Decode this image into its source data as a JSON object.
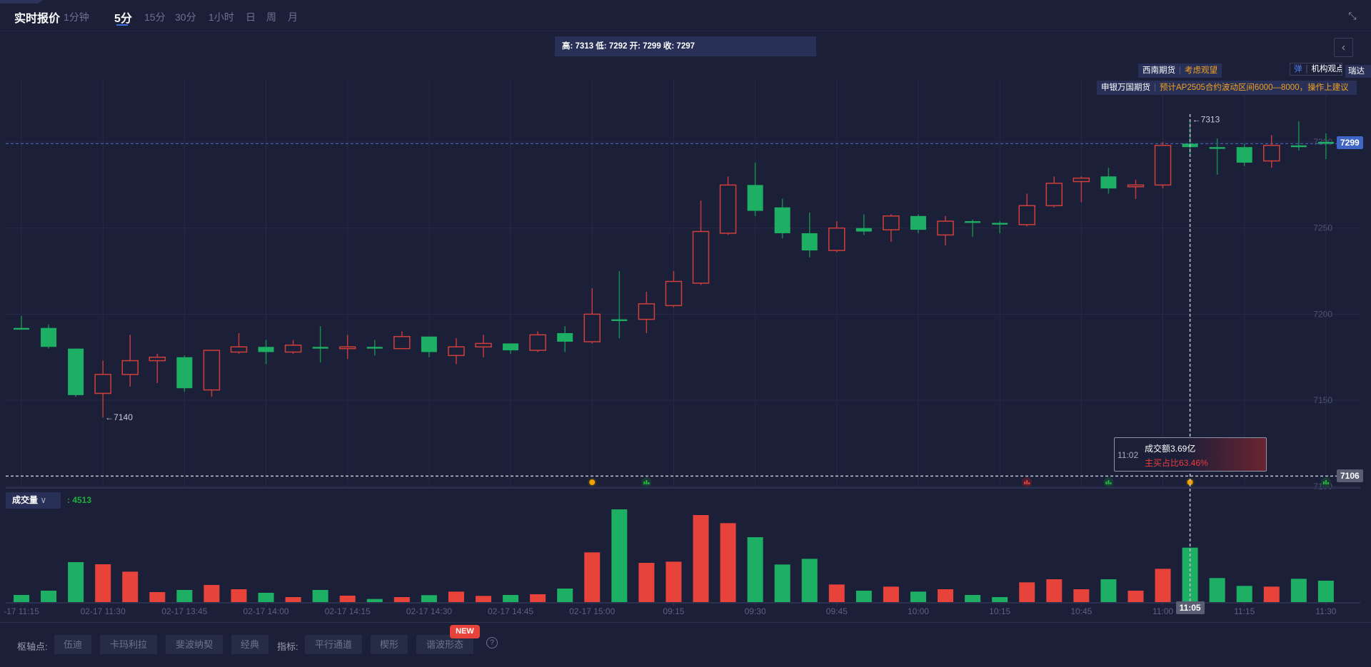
{
  "header": {
    "title": "实时报价",
    "tabs": [
      {
        "label": "1分钟"
      },
      {
        "label": "5分",
        "active": true
      },
      {
        "label": "15分"
      },
      {
        "label": "30分"
      },
      {
        "label": "1小时"
      },
      {
        "label": "日"
      },
      {
        "label": "周"
      },
      {
        "label": "月"
      }
    ],
    "collapse_icon": "collapse-arrows-icon"
  },
  "ohlc_text": "高: 7313 低: 7292 开: 7299 收: 7297",
  "back_icon": "chevron-left-icon",
  "annotations": [
    {
      "source": "西南期货",
      "text": "考虑观望"
    },
    {
      "source": "申银万国期货",
      "text": "预计AP2505合约波动区间6000—8000，操作上建议"
    },
    {
      "icon": "弹",
      "text": "机构观点"
    },
    {
      "text": "瑞达"
    }
  ],
  "colors": {
    "up": "#e8433a",
    "down": "#1daf63",
    "background": "#1b1f38",
    "last_price": "#3f66c7"
  },
  "price_axis": {
    "ticks": [
      "7300",
      "7250",
      "7200",
      "7150",
      "7100"
    ]
  },
  "last_price": "7299",
  "crosshair": {
    "price": "7106",
    "time": "11:05"
  },
  "extremes": {
    "high": "←7313",
    "low": "←7140"
  },
  "event_markers": [
    {
      "candle": 22,
      "type": "gold"
    },
    {
      "candle": 24,
      "type": "green-bars"
    },
    {
      "candle": 38,
      "type": "red-bars"
    },
    {
      "candle": 41,
      "type": "green-bars"
    },
    {
      "candle": 44,
      "type": "gold"
    },
    {
      "candle": 49,
      "type": "green-bars"
    }
  ],
  "tooltip": {
    "time": "11:02",
    "amount": "成交额3.69亿",
    "ratio": "主买占比63.46%"
  },
  "volume": {
    "label": "成交量",
    "value": ": 4513"
  },
  "chart_data": {
    "type": "candlestick",
    "ylim": [
      7100,
      7320
    ],
    "grid": true,
    "x_ticks": [
      {
        "candle": 1,
        "label": "-17 11:15"
      },
      {
        "candle": 4,
        "label": "02-17 11:30"
      },
      {
        "candle": 7,
        "label": "02-17 13:45"
      },
      {
        "candle": 10,
        "label": "02-17 14:00"
      },
      {
        "candle": 13,
        "label": "02-17 14:15"
      },
      {
        "candle": 16,
        "label": "02-17 14:30"
      },
      {
        "candle": 19,
        "label": "02-17 14:45"
      },
      {
        "candle": 22,
        "label": "02-17 15:00"
      },
      {
        "candle": 25,
        "label": "09:15"
      },
      {
        "candle": 28,
        "label": "09:30"
      },
      {
        "candle": 31,
        "label": "09:45"
      },
      {
        "candle": 34,
        "label": "10:00"
      },
      {
        "candle": 37,
        "label": "10:15"
      },
      {
        "candle": 40,
        "label": "10:45"
      },
      {
        "candle": 43,
        "label": "11:00"
      },
      {
        "candle": 46,
        "label": "11:15"
      },
      {
        "candle": 49,
        "label": "11:30"
      }
    ],
    "candles": [
      [
        7192,
        7199,
        7191,
        7191
      ],
      [
        7192,
        7194,
        7180,
        7181
      ],
      [
        7180,
        7180,
        7152,
        7153
      ],
      [
        7154,
        7173,
        7140,
        7165
      ],
      [
        7165,
        7188,
        7158,
        7173
      ],
      [
        7173,
        7177,
        7160,
        7175
      ],
      [
        7175,
        7176,
        7155,
        7157
      ],
      [
        7156,
        7179,
        7152,
        7179
      ],
      [
        7178,
        7189,
        7177,
        7181
      ],
      [
        7181,
        7185,
        7171,
        7178
      ],
      [
        7178,
        7185,
        7177,
        7182
      ],
      [
        7181,
        7193,
        7172,
        7180
      ],
      [
        7180,
        7188,
        7174,
        7181
      ],
      [
        7181,
        7185,
        7176,
        7180
      ],
      [
        7180,
        7190,
        7180,
        7187
      ],
      [
        7187,
        7187,
        7175,
        7178
      ],
      [
        7176,
        7186,
        7171,
        7181
      ],
      [
        7181,
        7188,
        7175,
        7183
      ],
      [
        7183,
        7183,
        7177,
        7179
      ],
      [
        7179,
        7190,
        7178,
        7188
      ],
      [
        7189,
        7193,
        7178,
        7184
      ],
      [
        7184,
        7215,
        7183,
        7200
      ],
      [
        7197,
        7225,
        7186,
        7196
      ],
      [
        7197,
        7213,
        7189,
        7206
      ],
      [
        7205,
        7225,
        7204,
        7219
      ],
      [
        7218,
        7266,
        7217,
        7248
      ],
      [
        7247,
        7280,
        7246,
        7275
      ],
      [
        7275,
        7288,
        7257,
        7260
      ],
      [
        7262,
        7267,
        7244,
        7247
      ],
      [
        7247,
        7259,
        7233,
        7237
      ],
      [
        7237,
        7254,
        7236,
        7250
      ],
      [
        7250,
        7258,
        7246,
        7248
      ],
      [
        7249,
        7258,
        7242,
        7257
      ],
      [
        7257,
        7258,
        7247,
        7249
      ],
      [
        7246,
        7257,
        7240,
        7254
      ],
      [
        7254,
        7255,
        7245,
        7253
      ],
      [
        7253,
        7254,
        7247,
        7252
      ],
      [
        7252,
        7270,
        7251,
        7263
      ],
      [
        7263,
        7280,
        7262,
        7276
      ],
      [
        7277,
        7280,
        7265,
        7279
      ],
      [
        7280,
        7285,
        7270,
        7273
      ],
      [
        7274,
        7278,
        7267,
        7275
      ],
      [
        7275,
        7300,
        7273,
        7298
      ],
      [
        7299,
        7313,
        7292,
        7297
      ],
      [
        7297,
        7302,
        7281,
        7296
      ],
      [
        7297,
        7299,
        7286,
        7288
      ],
      [
        7289,
        7304,
        7285,
        7298
      ],
      [
        7298,
        7312,
        7295,
        7297
      ],
      [
        7300,
        7305,
        7290,
        7299
      ]
    ],
    "volumes": [
      591,
      946,
      3311,
      3134,
      2523,
      828,
      1005,
      1419,
      1064,
      769,
      414,
      1005,
      532,
      256,
      414,
      572,
      867,
      512,
      591,
      650,
      1123,
      4119,
      7686,
      3252,
      3350,
      7213,
      6543,
      5380,
      3114,
      3587,
      1458,
      946,
      1281,
      867,
      1064,
      591,
      414,
      1636,
      1892,
      1064,
      1892,
      946,
      2759,
      4513,
      1991,
      1340,
      1281,
      1931,
      1774
    ]
  },
  "toolbar": {
    "pivot_label": "枢轴点:",
    "pivots": [
      "伍迪",
      "卡玛利拉",
      "斐波纳契",
      "经典"
    ],
    "indicator_label": "指标:",
    "indicators": [
      "平行通道",
      "楔形",
      "谐波形态"
    ],
    "new_badge": "NEW",
    "help_icon": "?"
  }
}
